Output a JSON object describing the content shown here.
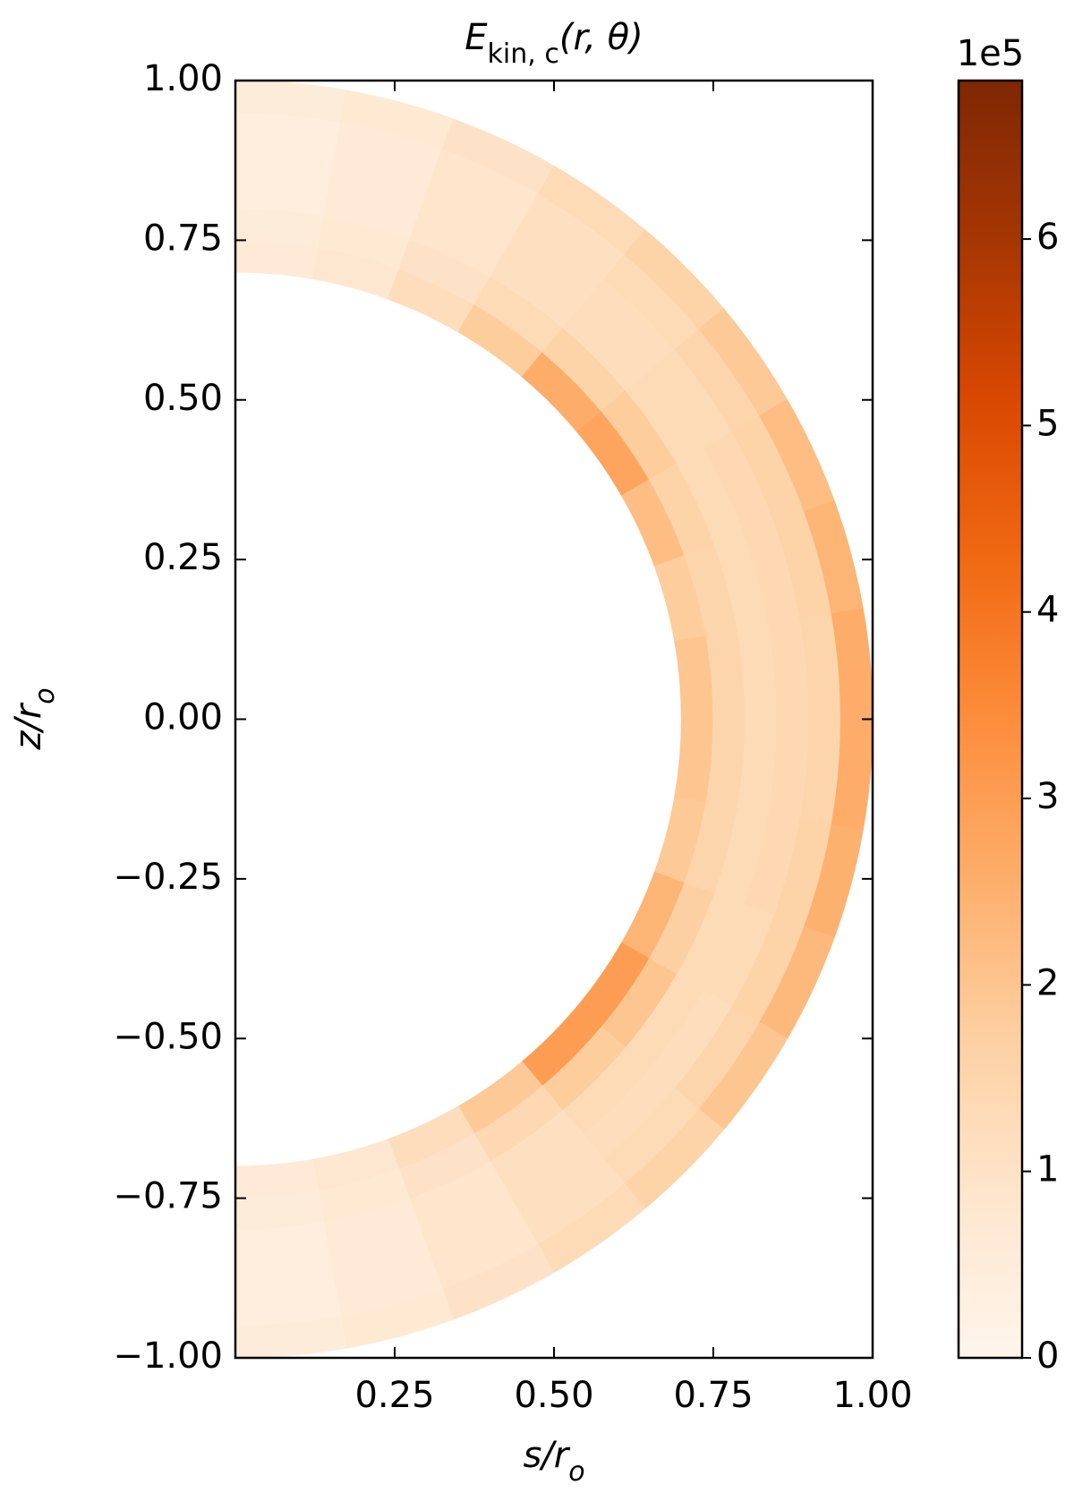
{
  "chart_data": {
    "type": "meridional-heatmap",
    "title": [
      "E",
      "kin, c",
      "(r, θ)"
    ],
    "xlabel": [
      "s/r",
      "o"
    ],
    "ylabel": [
      "z/r",
      "o"
    ],
    "xlim": [
      0,
      1
    ],
    "ylim": [
      -1,
      1
    ],
    "xticks": [
      0.25,
      {
        "value": 0.5,
        "label": "0.50"
      },
      {
        "value": 0.75,
        "label": "0.75"
      },
      {
        "value": 1,
        "label": "1.00"
      }
    ],
    "yticks": [
      {
        "value": -1,
        "label": "−1.00"
      },
      {
        "value": -0.75,
        "label": "−0.75"
      },
      {
        "value": -0.5,
        "label": "−0.50"
      },
      {
        "value": -0.25,
        "label": "−0.25"
      },
      {
        "value": 0,
        "label": "0.00"
      },
      0.25,
      {
        "value": 0.5,
        "label": "0.50"
      },
      0.75,
      {
        "value": 1,
        "label": "1.00"
      }
    ],
    "r_bins": [
      0.7,
      0.75,
      0.8,
      0.85,
      0.9,
      0.95,
      1.0
    ],
    "theta_bins": [
      0,
      10,
      20,
      30,
      40,
      50,
      60,
      70,
      80,
      90,
      100,
      110,
      120,
      130,
      140,
      150,
      160,
      170,
      180
    ],
    "values": [
      [
        0.6,
        0.5,
        0.4,
        0.4,
        0.4,
        0.5
      ],
      [
        0.8,
        0.7,
        0.6,
        0.6,
        0.6,
        0.7
      ],
      [
        1.2,
        1.0,
        0.9,
        0.9,
        0.9,
        1.0
      ],
      [
        1.8,
        1.3,
        1.1,
        1.1,
        1.1,
        1.3
      ],
      [
        2.6,
        1.6,
        1.2,
        1.2,
        1.3,
        1.6
      ],
      [
        2.8,
        1.8,
        1.3,
        1.3,
        1.5,
        1.9
      ],
      [
        2.2,
        1.6,
        1.3,
        1.4,
        1.6,
        2.2
      ],
      [
        1.8,
        1.5,
        1.3,
        1.4,
        1.6,
        2.4
      ],
      [
        2.0,
        1.5,
        1.3,
        1.4,
        1.5,
        2.6
      ],
      [
        2.0,
        1.5,
        1.3,
        1.4,
        1.5,
        2.6
      ],
      [
        1.9,
        1.5,
        1.3,
        1.4,
        1.6,
        2.5
      ],
      [
        2.4,
        1.7,
        1.3,
        1.3,
        1.6,
        2.3
      ],
      [
        3.0,
        2.0,
        1.3,
        1.2,
        1.5,
        2.0
      ],
      [
        3.0,
        1.8,
        1.3,
        1.2,
        1.3,
        1.6
      ],
      [
        1.9,
        1.4,
        1.1,
        1.1,
        1.1,
        1.3
      ],
      [
        1.2,
        1.0,
        0.9,
        0.9,
        0.9,
        1.0
      ],
      [
        0.8,
        0.7,
        0.6,
        0.6,
        0.6,
        0.7
      ],
      [
        0.6,
        0.5,
        0.4,
        0.4,
        0.4,
        0.5
      ]
    ],
    "colormap": [
      "#fff5eb",
      "#fee6ce",
      "#fdd0a2",
      "#fdae6b",
      "#fd8d3c",
      "#f16913",
      "#d94801",
      "#a63603",
      "#7f2704"
    ],
    "clim": [
      0,
      6.85
    ],
    "cticks": [
      0,
      1,
      2,
      3,
      4,
      5,
      6
    ],
    "c_offset_label": "1e5"
  }
}
